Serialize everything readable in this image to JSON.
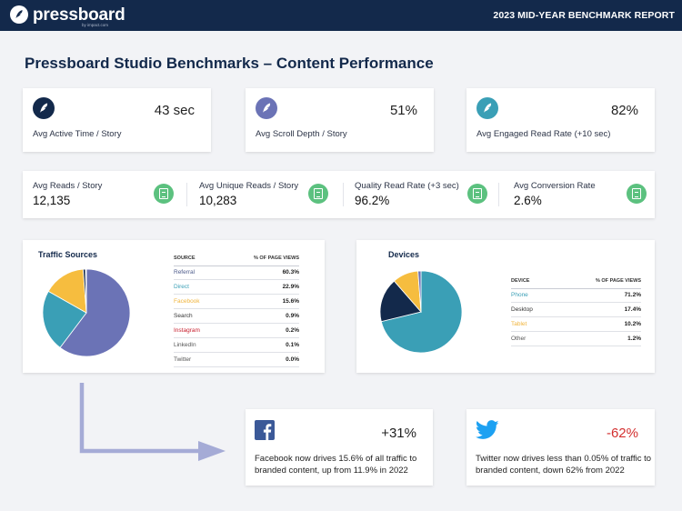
{
  "header": {
    "brand": "pressboard",
    "brand_sub": "by impact.com",
    "report_title": "2023 MID-YEAR BENCHMARK REPORT"
  },
  "page_title": "Pressboard Studio Benchmarks – Content Performance",
  "metrics": [
    {
      "value": "43 sec",
      "label": "Avg Active Time / Story",
      "icon": "quill-icon",
      "color": "#13294b"
    },
    {
      "value": "51%",
      "label": "Avg Scroll Depth / Story",
      "icon": "quill-icon",
      "color": "#6b73b6"
    },
    {
      "value": "82%",
      "label": "Avg Engaged Read Rate (+10 sec)",
      "icon": "quill-icon",
      "color": "#3a9fb6"
    }
  ],
  "stats": [
    {
      "label": "Avg Reads / Story",
      "value": "12,135",
      "icon": "document-icon"
    },
    {
      "label": "Avg Unique Reads / Story",
      "value": "10,283",
      "icon": "document-icon"
    },
    {
      "label": "Quality Read Rate (+3 sec)",
      "value": "96.2%",
      "icon": "document-icon"
    },
    {
      "label": "Avg Conversion Rate",
      "value": "2.6%",
      "icon": "document-icon"
    }
  ],
  "traffic": {
    "title": "Traffic Sources",
    "col_source": "SOURCE",
    "col_pct": "% OF PAGE VIEWS",
    "rows": [
      {
        "name": "Referral",
        "pct": "60.3%",
        "color": "#4c5a8a"
      },
      {
        "name": "Direct",
        "pct": "22.9%",
        "color": "#3a9fb6"
      },
      {
        "name": "Facebook",
        "pct": "15.6%",
        "color": "#f0b43c"
      },
      {
        "name": "Search",
        "pct": "0.9%",
        "color": "#333333"
      },
      {
        "name": "Instagram",
        "pct": "0.2%",
        "color": "#c8202f"
      },
      {
        "name": "LinkedIn",
        "pct": "0.1%",
        "color": "#555555"
      },
      {
        "name": "Twitter",
        "pct": "0.0%",
        "color": "#555555"
      }
    ]
  },
  "devices": {
    "title": "Devices",
    "col_device": "DEVICE",
    "col_pct": "% OF PAGE VIEWS",
    "rows": [
      {
        "name": "Phone",
        "pct": "71.2%",
        "color": "#3a9fb6"
      },
      {
        "name": "Desktop",
        "pct": "17.4%",
        "color": "#333333"
      },
      {
        "name": "Tablet",
        "pct": "10.2%",
        "color": "#f0b43c"
      },
      {
        "name": "Other",
        "pct": "1.2%",
        "color": "#555555"
      }
    ]
  },
  "chart_data": [
    {
      "type": "pie",
      "title": "Traffic Sources",
      "categories": [
        "Referral",
        "Direct",
        "Facebook",
        "Search",
        "Instagram",
        "LinkedIn",
        "Twitter"
      ],
      "values": [
        60.3,
        22.9,
        15.6,
        0.9,
        0.2,
        0.1,
        0.0
      ],
      "colors": [
        "#6b73b6",
        "#3a9fb6",
        "#f6bd3f",
        "#13294b",
        "#c8202f",
        "#8a8a8a",
        "#5aaee0"
      ]
    },
    {
      "type": "pie",
      "title": "Devices",
      "categories": [
        "Phone",
        "Desktop",
        "Tablet",
        "Other"
      ],
      "values": [
        71.2,
        17.4,
        10.2,
        1.2
      ],
      "colors": [
        "#3a9fb6",
        "#13294b",
        "#f6bd3f",
        "#6b73b6"
      ]
    }
  ],
  "social": [
    {
      "pct": "+31%",
      "pct_color": "#222222",
      "icon": "facebook-icon",
      "text": "Facebook now drives 15.6% of all traffic to branded content, up from 11.9% in 2022"
    },
    {
      "pct": "-62%",
      "pct_color": "#d32f2f",
      "icon": "twitter-icon",
      "text": "Twitter now drives less than 0.05% of traffic to branded content, down 62% from 2022"
    }
  ]
}
